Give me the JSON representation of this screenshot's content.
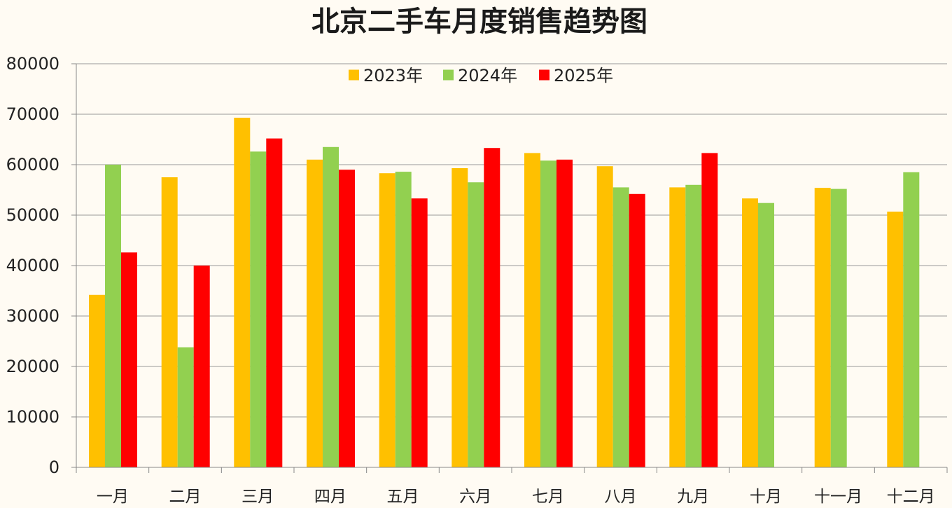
{
  "chart_data": {
    "type": "bar",
    "title": "北京二手车月度销售趋势图",
    "categories": [
      "一月",
      "二月",
      "三月",
      "四月",
      "五月",
      "六月",
      "七月",
      "八月",
      "九月",
      "十月",
      "十一月",
      "十二月"
    ],
    "series": [
      {
        "name": "2023年",
        "color": "#ffc000",
        "values": [
          34200,
          57500,
          69300,
          61000,
          58300,
          59300,
          62300,
          59700,
          55500,
          53300,
          55400,
          50700
        ]
      },
      {
        "name": "2024年",
        "color": "#92d050",
        "values": [
          60000,
          23800,
          62600,
          63500,
          58600,
          56500,
          60800,
          55500,
          56000,
          52400,
          55200,
          58500
        ]
      },
      {
        "name": "2025年",
        "color": "#ff0000",
        "values": [
          42600,
          40000,
          65200,
          59000,
          53300,
          63300,
          61000,
          54200,
          62300,
          null,
          null,
          null
        ]
      }
    ],
    "ylim": [
      0,
      80000
    ],
    "yticks": [
      "0",
      "10000",
      "20000",
      "30000",
      "40000",
      "50000",
      "60000",
      "70000",
      "80000"
    ],
    "grid": true,
    "legend_position": "top-center"
  }
}
